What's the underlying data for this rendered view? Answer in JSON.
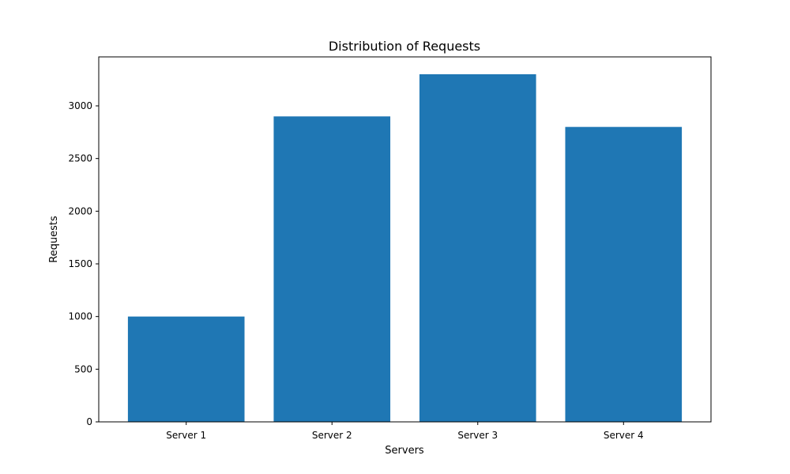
{
  "chart_data": {
    "type": "bar",
    "title": "Distribution of Requests",
    "xlabel": "Servers",
    "ylabel": "Requests",
    "categories": [
      "Server 1",
      "Server 2",
      "Server 3",
      "Server 4"
    ],
    "values": [
      1000,
      2900,
      3300,
      2800
    ],
    "ylim": [
      0,
      3465
    ],
    "yticks": [
      0,
      500,
      1000,
      1500,
      2000,
      2500,
      3000
    ],
    "grid": false,
    "legend": "none",
    "bar_color": "#1f77b4"
  }
}
